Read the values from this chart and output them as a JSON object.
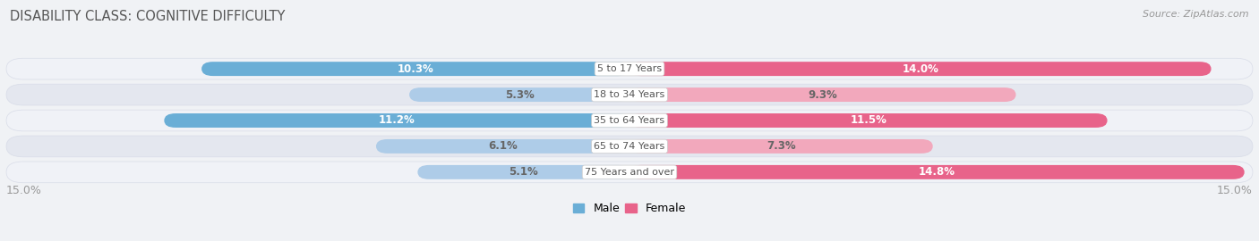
{
  "title": "DISABILITY CLASS: COGNITIVE DIFFICULTY",
  "source": "Source: ZipAtlas.com",
  "categories": [
    "5 to 17 Years",
    "18 to 34 Years",
    "35 to 64 Years",
    "65 to 74 Years",
    "75 Years and over"
  ],
  "male_values": [
    10.3,
    5.3,
    11.2,
    6.1,
    5.1
  ],
  "female_values": [
    14.0,
    9.3,
    11.5,
    7.3,
    14.8
  ],
  "max_val": 15.0,
  "male_color_strong": "#6aaed6",
  "male_color_light": "#aecce8",
  "female_color_strong": "#e8638a",
  "female_color_light": "#f2a8bc",
  "label_white": "#ffffff",
  "label_dark": "#666666",
  "bg_color": "#f0f2f5",
  "row_bg_even": "#f0f2f7",
  "row_bg_odd": "#e4e7ef",
  "row_border": "#d8dce8",
  "axis_label_color": "#999999",
  "title_color": "#555555",
  "center_label_color": "#555555",
  "center_bg_color": "#ffffff",
  "strong_threshold": 9.5
}
